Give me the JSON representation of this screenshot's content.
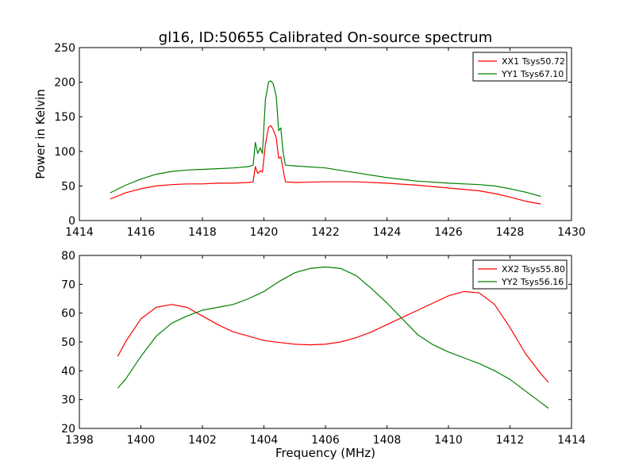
{
  "title": "gl16, ID:50655 Calibrated On-source spectrum",
  "chart_data": [
    {
      "type": "line",
      "xlabel": "",
      "ylabel": "Power in Kelvin",
      "xlim": [
        1414,
        1430
      ],
      "ylim": [
        0,
        250
      ],
      "xticks": [
        1414,
        1416,
        1418,
        1420,
        1422,
        1424,
        1426,
        1428,
        1430
      ],
      "yticks": [
        0,
        50,
        100,
        150,
        200,
        250
      ],
      "grid": false,
      "legend_position": "top-right",
      "series": [
        {
          "name": "XX1 Tsys50.72",
          "color": "#ff0000",
          "x": [
            1415.0,
            1415.5,
            1416.0,
            1416.5,
            1417.0,
            1417.5,
            1418.0,
            1418.5,
            1419.0,
            1419.5,
            1419.65,
            1419.72,
            1419.8,
            1419.88,
            1419.95,
            1420.05,
            1420.15,
            1420.22,
            1420.3,
            1420.4,
            1420.48,
            1420.55,
            1420.62,
            1420.7,
            1421.0,
            1422.0,
            1423.0,
            1424.0,
            1425.0,
            1426.0,
            1427.0,
            1427.5,
            1428.0,
            1428.5,
            1429.0
          ],
          "y": [
            31,
            40,
            46,
            50,
            52,
            53,
            53,
            54,
            54,
            55,
            56,
            78,
            68,
            72,
            70,
            110,
            135,
            137,
            132,
            120,
            90,
            92,
            75,
            56,
            55,
            56,
            56,
            54,
            51,
            47,
            43,
            39,
            34,
            28,
            24
          ]
        },
        {
          "name": "YY1 Tsys67.10",
          "color": "#008000",
          "x": [
            1415.0,
            1415.5,
            1416.0,
            1416.5,
            1417.0,
            1417.5,
            1418.0,
            1418.5,
            1419.0,
            1419.5,
            1419.65,
            1419.72,
            1419.8,
            1419.88,
            1419.95,
            1420.05,
            1420.15,
            1420.22,
            1420.3,
            1420.4,
            1420.48,
            1420.55,
            1420.62,
            1420.7,
            1421.0,
            1422.0,
            1423.0,
            1424.0,
            1425.0,
            1426.0,
            1427.0,
            1427.5,
            1428.0,
            1428.5,
            1429.0
          ],
          "y": [
            40,
            51,
            60,
            67,
            71,
            73,
            74,
            75,
            76,
            78,
            80,
            113,
            97,
            105,
            97,
            175,
            200,
            202,
            198,
            180,
            130,
            134,
            100,
            80,
            79,
            76,
            69,
            62,
            57,
            54,
            52,
            50,
            46,
            41,
            35
          ]
        }
      ]
    },
    {
      "type": "line",
      "xlabel": "Frequency (MHz)",
      "ylabel": "",
      "xlim": [
        1398,
        1414
      ],
      "ylim": [
        20,
        80
      ],
      "xticks": [
        1398,
        1400,
        1402,
        1404,
        1406,
        1408,
        1410,
        1412,
        1414
      ],
      "yticks": [
        20,
        30,
        40,
        50,
        60,
        70,
        80
      ],
      "grid": false,
      "legend_position": "top-right",
      "series": [
        {
          "name": "XX2 Tsys55.80",
          "color": "#ff0000",
          "x": [
            1399.25,
            1399.5,
            1400.0,
            1400.5,
            1401.0,
            1401.5,
            1402.0,
            1402.5,
            1403.0,
            1403.5,
            1404.0,
            1404.5,
            1405.0,
            1405.5,
            1406.0,
            1406.5,
            1407.0,
            1407.5,
            1408.0,
            1408.5,
            1409.0,
            1409.5,
            1410.0,
            1410.5,
            1411.0,
            1411.5,
            1412.0,
            1412.5,
            1413.0,
            1413.25
          ],
          "y": [
            45,
            50,
            58,
            62,
            63,
            62,
            59,
            56,
            53.5,
            52,
            50.5,
            49.8,
            49.2,
            49,
            49.2,
            50,
            51.5,
            53.5,
            56,
            58.5,
            61,
            63.5,
            66,
            67.5,
            67,
            63,
            55,
            46,
            39,
            36
          ]
        },
        {
          "name": "YY2 Tsys56.16",
          "color": "#008000",
          "x": [
            1399.25,
            1399.5,
            1400.0,
            1400.5,
            1401.0,
            1401.5,
            1402.0,
            1402.5,
            1403.0,
            1403.5,
            1404.0,
            1404.5,
            1405.0,
            1405.5,
            1406.0,
            1406.5,
            1407.0,
            1407.5,
            1408.0,
            1408.5,
            1409.0,
            1409.5,
            1410.0,
            1410.5,
            1411.0,
            1411.5,
            1412.0,
            1412.5,
            1413.0,
            1413.25
          ],
          "y": [
            34,
            37,
            45,
            52,
            56.5,
            59,
            61,
            62,
            63,
            65,
            67.5,
            71,
            74,
            75.5,
            76,
            75.5,
            73,
            68.5,
            63.5,
            58,
            52.5,
            49,
            46.5,
            44.5,
            42.5,
            40,
            37,
            33,
            29,
            27
          ]
        }
      ]
    }
  ]
}
